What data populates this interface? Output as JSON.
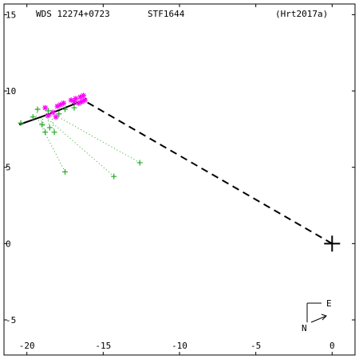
{
  "header": {
    "wds": "WDS 12274+0723",
    "disc": "STF1644",
    "orbit_ref": "(Hrt2017a)"
  },
  "compass": {
    "east_label": "E",
    "north_label": "N"
  },
  "colors": {
    "axes": "#000000",
    "observation": "#22aa22",
    "measure": "#ff00ff",
    "residual": "#22aa22"
  },
  "chart_data": {
    "type": "scatter",
    "xlim": [
      -21.5,
      1.5
    ],
    "ylim": [
      -7.3,
      15.7
    ],
    "x_ticks": [
      -20,
      -15,
      -10,
      -5,
      0
    ],
    "y_ticks": [
      15,
      10,
      5,
      0,
      -5
    ],
    "x_tick_labels": [
      "-20",
      "-15",
      "-10",
      "-5",
      "0"
    ],
    "y_tick_labels": [
      "15",
      "10",
      "5",
      "0",
      "-5"
    ],
    "primary": {
      "x": 0,
      "y": 0
    },
    "orbit_arc": [
      [
        -20.5,
        7.8
      ],
      [
        -19.5,
        8.15
      ],
      [
        -18.5,
        8.5
      ],
      [
        -17.5,
        8.9
      ],
      [
        -16.5,
        9.3
      ],
      [
        -16.1,
        9.5
      ]
    ],
    "node_line": [
      [
        0,
        0
      ],
      [
        -16.3,
        9.4
      ]
    ],
    "observations_plus": [
      {
        "obs": [
          -20.4,
          7.9
        ],
        "pred": [
          -20.5,
          7.8
        ]
      },
      {
        "obs": [
          -19.6,
          8.3
        ],
        "pred": [
          -19.6,
          8.1
        ]
      },
      {
        "obs": [
          -19.3,
          8.8
        ],
        "pred": [
          -19.4,
          8.2
        ]
      },
      {
        "obs": [
          -19.0,
          7.8
        ],
        "pred": [
          -19.1,
          8.3
        ]
      },
      {
        "obs": [
          -18.8,
          7.3
        ],
        "pred": [
          -19.0,
          8.3
        ]
      },
      {
        "obs": [
          -18.5,
          7.6
        ],
        "pred": [
          -18.7,
          8.4
        ]
      },
      {
        "obs": [
          -18.2,
          7.3
        ],
        "pred": [
          -18.4,
          8.5
        ]
      },
      {
        "obs": [
          -18.6,
          8.7
        ],
        "pred": [
          -18.6,
          8.5
        ]
      },
      {
        "obs": [
          -17.9,
          8.5
        ],
        "pred": [
          -18.0,
          8.6
        ]
      },
      {
        "obs": [
          -17.5,
          8.8
        ],
        "pred": [
          -17.6,
          8.8
        ]
      },
      {
        "obs": [
          -16.9,
          8.9
        ],
        "pred": [
          -17.0,
          9.0
        ]
      },
      {
        "obs": [
          -17.5,
          4.7
        ],
        "pred": [
          -19.3,
          8.2
        ]
      },
      {
        "obs": [
          -14.3,
          4.4
        ],
        "pred": [
          -18.9,
          8.4
        ]
      },
      {
        "obs": [
          -12.6,
          5.3
        ],
        "pred": [
          -18.3,
          8.5
        ]
      }
    ],
    "measures_star": [
      [
        -18.6,
        8.4
      ],
      [
        -18.3,
        8.6
      ],
      [
        -18.0,
        9.0
      ],
      [
        -17.6,
        9.2
      ],
      [
        -18.8,
        8.9
      ],
      [
        -17.1,
        9.4
      ],
      [
        -16.8,
        9.5
      ],
      [
        -16.5,
        9.6
      ],
      [
        -16.3,
        9.7
      ],
      [
        -16.2,
        9.4
      ],
      [
        -16.4,
        9.3
      ],
      [
        -16.6,
        9.2
      ],
      [
        -17.8,
        9.1
      ],
      [
        -18.1,
        8.3
      ],
      [
        -16.9,
        9.3
      ]
    ]
  }
}
